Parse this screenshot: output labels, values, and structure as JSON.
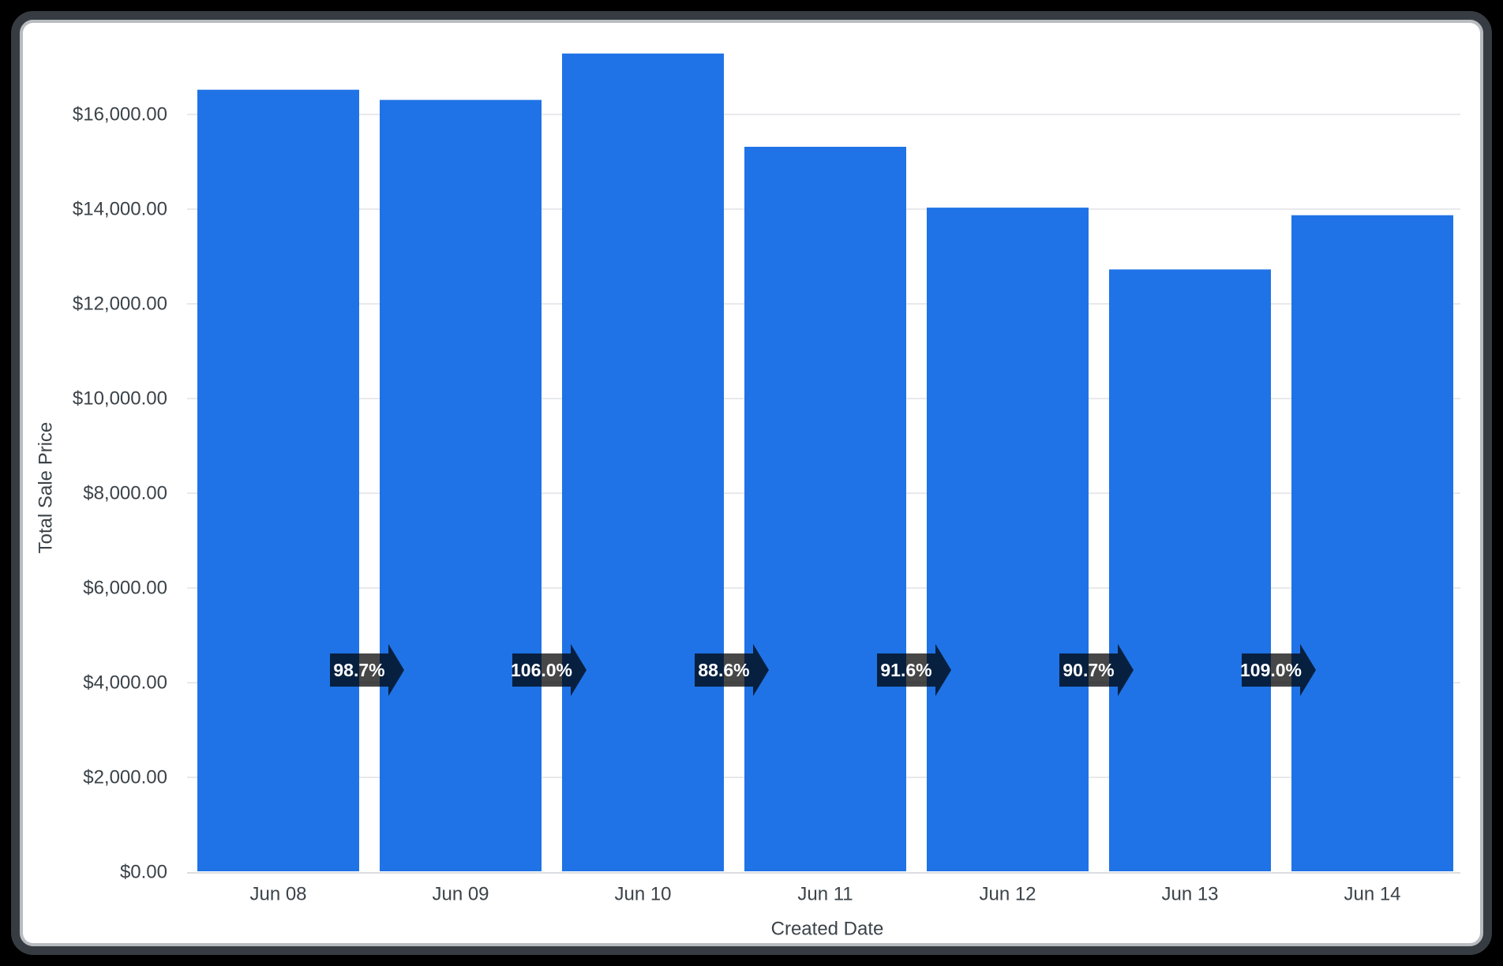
{
  "chart_data": {
    "type": "bar",
    "title": "",
    "xlabel": "Created Date",
    "ylabel": "Total Sale Price",
    "categories": [
      "Jun 08",
      "Jun 09",
      "Jun 10",
      "Jun 11",
      "Jun 12",
      "Jun 13",
      "Jun 14"
    ],
    "values": [
      16505,
      16290,
      17270,
      15300,
      14015,
      12710,
      13855
    ],
    "growth_labels": [
      "98.7%",
      "106.0%",
      "88.6%",
      "91.6%",
      "90.7%",
      "109.0%"
    ],
    "y_ticks": {
      "values": [
        0,
        2000,
        4000,
        6000,
        8000,
        10000,
        12000,
        14000,
        16000
      ],
      "labels": [
        "$0.00",
        "$2,000.00",
        "$4,000.00",
        "$6,000.00",
        "$8,000.00",
        "$10,000.00",
        "$12,000.00",
        "$14,000.00",
        "$16,000.00"
      ]
    },
    "ylim": [
      0,
      17750
    ],
    "grid": "horizontal",
    "legend": "none"
  },
  "colors": {
    "bar": "#1f73e6",
    "arrow_fill": "#000000",
    "arrow_opacity": "0.72",
    "arrow_text": "#ffffff",
    "gridline": "#e8e9ec",
    "axis_line": "#dcdee2",
    "text": "#3b4349",
    "page_background": "#000000",
    "card_background": "#ffffff",
    "card_border": "#363c41"
  }
}
